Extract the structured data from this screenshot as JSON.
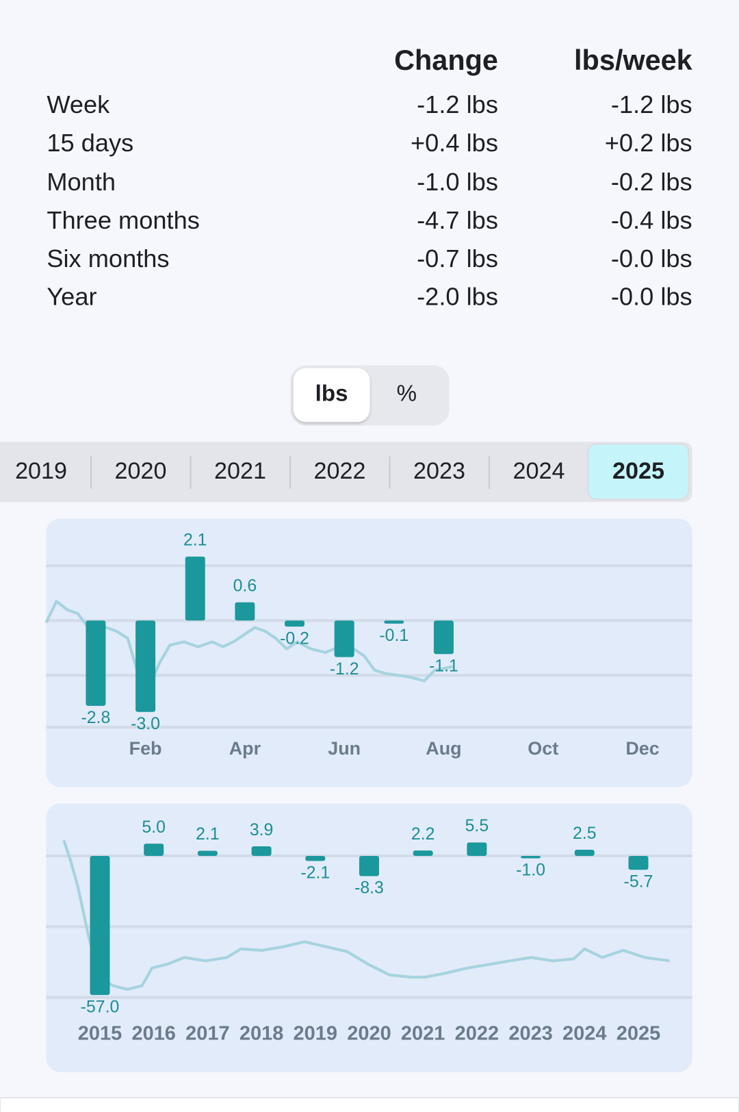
{
  "table": {
    "headers": [
      "Change",
      "lbs/week"
    ],
    "rows": [
      [
        "Week",
        "-1.2 lbs",
        "-1.2 lbs"
      ],
      [
        "15 days",
        "+0.4 lbs",
        "+0.2 lbs"
      ],
      [
        "Month",
        "-1.0 lbs",
        "-0.2 lbs"
      ],
      [
        "Three months",
        "-4.7 lbs",
        "-0.4 lbs"
      ],
      [
        "Six months",
        "-0.7 lbs",
        "-0.0 lbs"
      ],
      [
        "Year",
        "-2.0 lbs",
        "-0.0 lbs"
      ]
    ]
  },
  "unit_toggle": {
    "options": [
      "lbs",
      "%"
    ],
    "selected": 0
  },
  "year_tabs": {
    "years": [
      "2019",
      "2020",
      "2021",
      "2022",
      "2023",
      "2024",
      "2025"
    ],
    "selected": 6
  },
  "chart_data": [
    {
      "type": "bar",
      "categories": [
        null,
        "Feb",
        null,
        "Apr",
        null,
        "Jun",
        null,
        "Aug",
        null,
        "Oct",
        null,
        "Dec"
      ],
      "values": [
        -2.8,
        -3.0,
        2.1,
        0.6,
        -0.2,
        -1.2,
        -0.1,
        -1.1,
        null,
        null,
        null,
        null
      ],
      "value_labels": [
        "-2.8",
        "-3.0",
        "2.1",
        "0.6",
        "-0.2",
        "-1.2",
        "-0.1",
        "-1.1",
        null,
        null,
        null,
        null
      ],
      "color": "#1b989c",
      "xlim": [
        0,
        13
      ],
      "ylim": [
        -3.84,
        3.26
      ],
      "yticks": [
        1.8,
        0,
        -1.8,
        -3.5
      ],
      "grid": true,
      "trend": {
        "color": "#a6d3df",
        "x": [
          0,
          0.21,
          0.43,
          0.64,
          0.85,
          1.21,
          1.42,
          1.64,
          1.85,
          2.13,
          2.28,
          2.49,
          2.77,
          3.06,
          3.34,
          3.56,
          3.77,
          3.98,
          4.2,
          4.41,
          4.62,
          4.84,
          5.05,
          5.33,
          5.62,
          5.9,
          6.19,
          6.4,
          6.61,
          6.83,
          7.04,
          7.33,
          7.61,
          7.82,
          8.04,
          8.18
        ],
        "values": [
          -0.07,
          0.63,
          0.35,
          0.23,
          -0.23,
          -0.23,
          -0.35,
          -0.58,
          -1.74,
          -1.98,
          -1.4,
          -0.81,
          -0.7,
          -0.86,
          -0.7,
          -0.86,
          -0.7,
          -0.47,
          -0.23,
          -0.35,
          -0.58,
          -0.93,
          -0.7,
          -0.93,
          -1.05,
          -0.86,
          -0.93,
          -1.16,
          -1.63,
          -1.74,
          -1.79,
          -1.86,
          -1.98,
          -1.63,
          -1.56,
          -1.51
        ]
      }
    },
    {
      "type": "bar",
      "categories": [
        "2015",
        "2016",
        "2017",
        "2018",
        "2019",
        "2020",
        "2021",
        "2022",
        "2023",
        "2024",
        "2025"
      ],
      "values": [
        -57.0,
        5.0,
        2.1,
        3.9,
        -2.1,
        -8.3,
        2.2,
        5.5,
        -1.0,
        2.5,
        -5.7
      ],
      "value_labels": [
        "-57.0",
        "5.0",
        "2.1",
        "3.9",
        "-2.1",
        "-8.3",
        "2.2",
        "5.5",
        "-1.0",
        "2.5",
        "-5.7"
      ],
      "color": "#1b989c",
      "xlim": [
        0,
        12
      ],
      "ylim": [
        -67.7,
        20.9
      ],
      "yticks": [
        0,
        -29,
        -58
      ],
      "grid": true,
      "trend": {
        "color": "#a6d3df",
        "x": [
          0.33,
          0.46,
          0.59,
          0.79,
          0.99,
          1.25,
          1.51,
          1.78,
          1.97,
          2.24,
          2.57,
          2.96,
          3.36,
          3.62,
          4.01,
          4.41,
          4.8,
          5.2,
          5.59,
          5.99,
          6.38,
          6.78,
          7.04,
          7.43,
          7.83,
          8.22,
          8.62,
          9.01,
          9.41,
          9.8,
          10,
          10.33,
          10.72,
          11.12,
          11.58
        ],
        "values": [
          6.4,
          -2.3,
          -12.5,
          -32.8,
          -50.3,
          -53.2,
          -54.7,
          -53.2,
          -45.9,
          -44.5,
          -41.6,
          -43,
          -41.6,
          -38.1,
          -38.7,
          -37.2,
          -35.2,
          -37.2,
          -39.2,
          -44.5,
          -48.8,
          -49.7,
          -49.7,
          -48,
          -45.9,
          -44.5,
          -43,
          -41.6,
          -43,
          -42.2,
          -38.1,
          -41.6,
          -38.7,
          -41.6,
          -43
        ]
      }
    }
  ]
}
